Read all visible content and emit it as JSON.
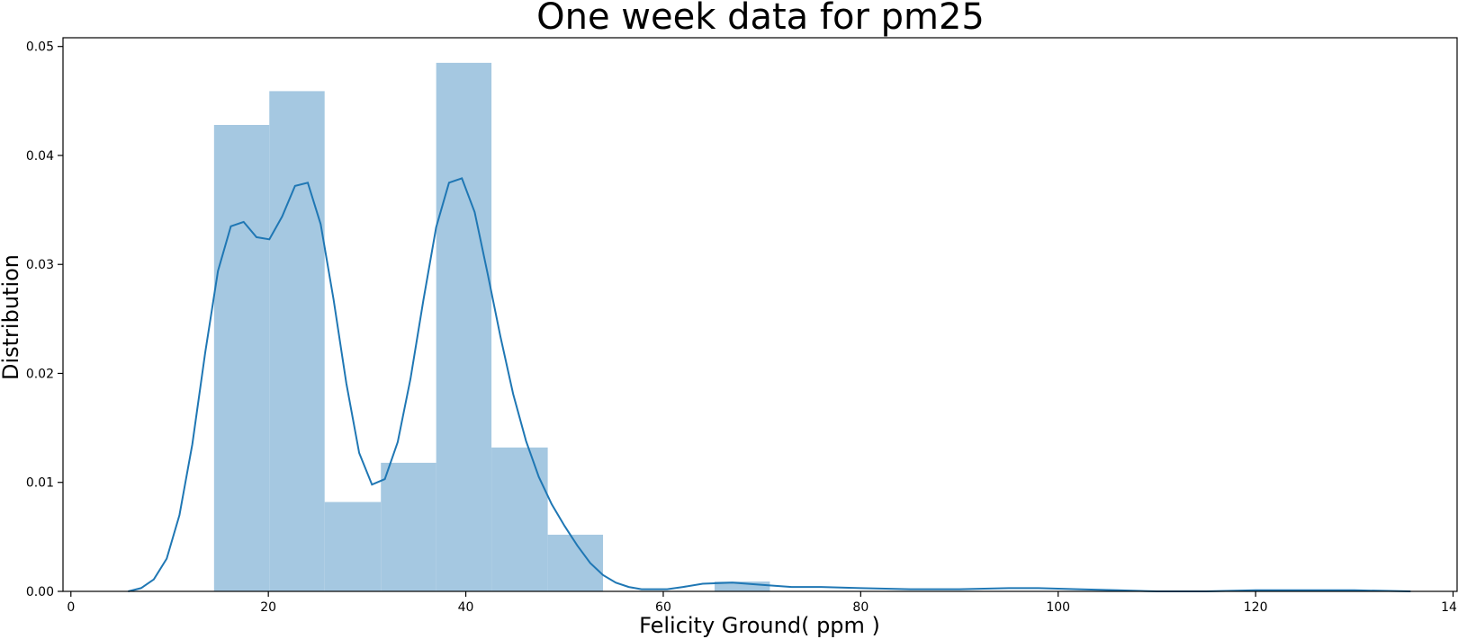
{
  "chart_data": {
    "type": "histogram",
    "title": "One week data for pm25",
    "xlabel": "Felicity Ground( ppm )",
    "ylabel": "Distribution",
    "xlim": [
      -0.8,
      140.5
    ],
    "ylim": [
      0,
      0.0508
    ],
    "xticks": [
      0,
      20,
      40,
      60,
      80,
      100,
      120,
      140
    ],
    "yticks": [
      0.0,
      0.01,
      0.02,
      0.03,
      0.04,
      0.05
    ],
    "ytick_labels": [
      "0.00",
      "0.01",
      "0.02",
      "0.03",
      "0.04",
      "0.05"
    ],
    "grid": false,
    "bar_color": "#a5c8e1",
    "line_color": "#1f77b4",
    "bins": [
      {
        "x0": 14.5,
        "x1": 20.1,
        "value": 0.0428
      },
      {
        "x0": 20.1,
        "x1": 25.7,
        "value": 0.0459
      },
      {
        "x0": 25.7,
        "x1": 31.4,
        "value": 0.0082
      },
      {
        "x0": 31.4,
        "x1": 37.0,
        "value": 0.0118
      },
      {
        "x0": 37.0,
        "x1": 42.6,
        "value": 0.0485
      },
      {
        "x0": 42.6,
        "x1": 48.3,
        "value": 0.0132
      },
      {
        "x0": 48.3,
        "x1": 53.9,
        "value": 0.0052
      },
      {
        "x0": 53.9,
        "x1": 59.5,
        "value": 0.0
      },
      {
        "x0": 59.5,
        "x1": 65.2,
        "value": 0.0
      },
      {
        "x0": 65.2,
        "x1": 70.8,
        "value": 0.0009
      }
    ],
    "kde": {
      "x": [
        5.8,
        7.1,
        8.4,
        9.7,
        11.0,
        12.3,
        13.6,
        14.9,
        16.2,
        17.5,
        18.8,
        20.1,
        21.4,
        22.7,
        24.0,
        25.3,
        26.6,
        27.9,
        29.2,
        30.5,
        31.8,
        33.1,
        34.4,
        35.7,
        37.0,
        38.3,
        39.6,
        40.9,
        42.2,
        43.5,
        44.8,
        46.1,
        47.4,
        48.7,
        50.0,
        51.3,
        52.6,
        53.9,
        55.2,
        56.5,
        57.8,
        59.1,
        60.4,
        62.0,
        64.0,
        67.0,
        70.0,
        73.0,
        76.0,
        80.0,
        85.0,
        90.0,
        95.0,
        98.0,
        102.0,
        106.0,
        110.0,
        115.0,
        120.0,
        125.0,
        130.0,
        135.7
      ],
      "y": [
        0.0,
        0.0003,
        0.0011,
        0.003,
        0.007,
        0.0135,
        0.0219,
        0.0294,
        0.0335,
        0.0339,
        0.0325,
        0.0323,
        0.0344,
        0.0372,
        0.0375,
        0.0337,
        0.0268,
        0.0191,
        0.0127,
        0.0098,
        0.0103,
        0.0137,
        0.0195,
        0.0267,
        0.0334,
        0.0375,
        0.0379,
        0.0348,
        0.0292,
        0.0234,
        0.0181,
        0.0138,
        0.0105,
        0.008,
        0.006,
        0.0042,
        0.0026,
        0.0015,
        0.0008,
        0.0004,
        0.0002,
        0.0002,
        0.0002,
        0.0004,
        0.0007,
        0.0008,
        0.0006,
        0.0004,
        0.0004,
        0.0003,
        0.0002,
        0.0002,
        0.0003,
        0.0003,
        0.0002,
        0.0001,
        0.0,
        0.0,
        0.0001,
        0.0001,
        0.0001,
        0.0
      ]
    }
  }
}
